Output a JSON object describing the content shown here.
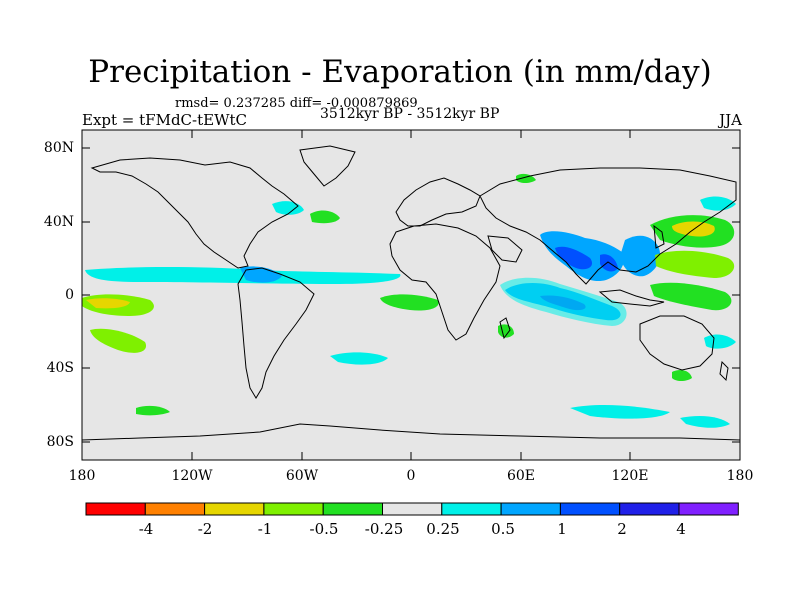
{
  "title": "Precipitation - Evaporation (in mm/day)",
  "stats": "rmsd= 0.237285 diff= -0.000879869",
  "experiment": "Expt = tFMdC-tEWtC",
  "period": "3512kyr BP - 3512kyr BP",
  "season": "JJA",
  "lat_labels": [
    "80N",
    "40N",
    "0",
    "40S",
    "80S"
  ],
  "lon_labels": [
    "180",
    "120W",
    "60W",
    "0",
    "60E",
    "120E",
    "180"
  ],
  "colorbar": {
    "labels": [
      "-4",
      "-2",
      "-1",
      "-0.5",
      "-0.25",
      "0.25",
      "0.5",
      "1",
      "2",
      "4"
    ],
    "colors": [
      "#ff0000",
      "#ff8000",
      "#e6d600",
      "#7ff000",
      "#22e022",
      "#e6e6e6",
      "#00f0e8",
      "#00a6ff",
      "#0050ff",
      "#2020e8",
      "#8020ff"
    ]
  },
  "map": {
    "background_color": "#e6e6e6",
    "coastline_color": "#000000"
  }
}
